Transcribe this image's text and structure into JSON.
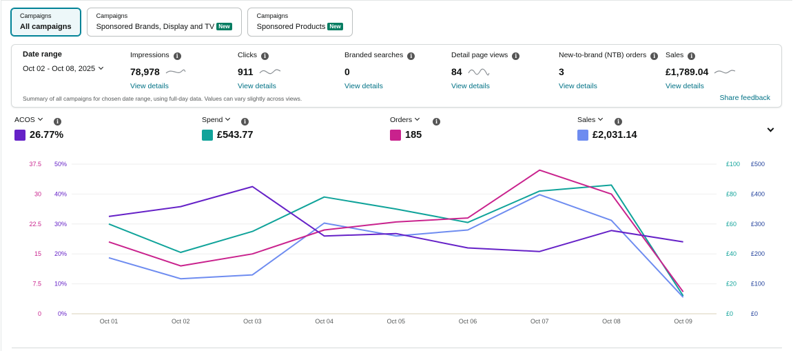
{
  "tabs": [
    {
      "small": "Campaigns",
      "big": "All campaigns",
      "badge": ""
    },
    {
      "small": "Campaigns",
      "big": "Sponsored Brands, Display and TV",
      "badge": "New"
    },
    {
      "small": "Campaigns",
      "big": "Sponsored Products",
      "badge": "New"
    }
  ],
  "summary": {
    "date_label": "Date range",
    "date_value": "Oct 02 - Oct 08, 2025",
    "metrics": [
      {
        "label": "Impressions",
        "value": "78,978",
        "link": "View details",
        "sparkline": true
      },
      {
        "label": "Clicks",
        "value": "911",
        "link": "View details",
        "sparkline": true
      },
      {
        "label": "Branded searches",
        "value": "0",
        "link": "View details",
        "sparkline": false
      },
      {
        "label": "Detail page views",
        "value": "84",
        "link": "View details",
        "sparkline": true
      },
      {
        "label": "New-to-brand (NTB) orders",
        "value": "3",
        "link": "View details",
        "sparkline": false
      },
      {
        "label": "Sales",
        "value": "£1,789.04",
        "link": "View details",
        "sparkline": true
      }
    ],
    "note": "Summary of all campaigns for chosen date range, using full-day data. Values can vary slightly across views.",
    "feedback": "Share feedback",
    "info_glyph": "i"
  },
  "kpis": [
    {
      "label": "ACOS",
      "value": "26.77%",
      "color": "#6521c7"
    },
    {
      "label": "Spend",
      "value": "£543.77",
      "color": "#10a39a"
    },
    {
      "label": "Orders",
      "value": "185",
      "color": "#c9228d"
    },
    {
      "label": "Sales",
      "value": "£2,031.14",
      "color": "#6e8cf0"
    }
  ],
  "chart_data": {
    "type": "line",
    "categories": [
      "Oct 01",
      "Oct 02",
      "Oct 03",
      "Oct 04",
      "Oct 05",
      "Oct 06",
      "Oct 07",
      "Oct 08",
      "Oct 09"
    ],
    "axes": {
      "orders": {
        "ticks": [
          "0",
          "7.5",
          "15",
          "22.5",
          "30",
          "37.5"
        ],
        "max": 37.5,
        "color": "#c9228d"
      },
      "acos": {
        "ticks": [
          "0%",
          "10%",
          "20%",
          "30%",
          "40%",
          "50%"
        ],
        "max": 50,
        "color": "#6521c7"
      },
      "spend": {
        "ticks": [
          "£0",
          "£20",
          "£40",
          "£60",
          "£80",
          "£100"
        ],
        "max": 100,
        "color": "#10a39a"
      },
      "sales": {
        "ticks": [
          "£0",
          "£100",
          "£200",
          "£300",
          "£400",
          "£500"
        ],
        "max": 500,
        "color": "#1f3f9a"
      }
    },
    "series": [
      {
        "name": "ACOS",
        "axis": "acos",
        "color": "#6521c7",
        "values": [
          32.5,
          35.8,
          42.5,
          26.0,
          26.8,
          22.0,
          20.8,
          27.8,
          24.0
        ]
      },
      {
        "name": "Spend",
        "axis": "spend",
        "color": "#10a39a",
        "values": [
          60,
          41,
          55,
          78,
          70,
          61,
          82,
          86,
          12
        ]
      },
      {
        "name": "Orders",
        "axis": "orders",
        "color": "#c9228d",
        "values": [
          18.0,
          12.0,
          15.0,
          21.0,
          23.0,
          24.0,
          36.0,
          30.0,
          5.5
        ]
      },
      {
        "name": "Sales",
        "axis": "sales",
        "color": "#6e8cf0",
        "values": [
          187,
          117,
          130,
          303,
          260,
          280,
          398,
          312,
          55
        ]
      }
    ]
  }
}
